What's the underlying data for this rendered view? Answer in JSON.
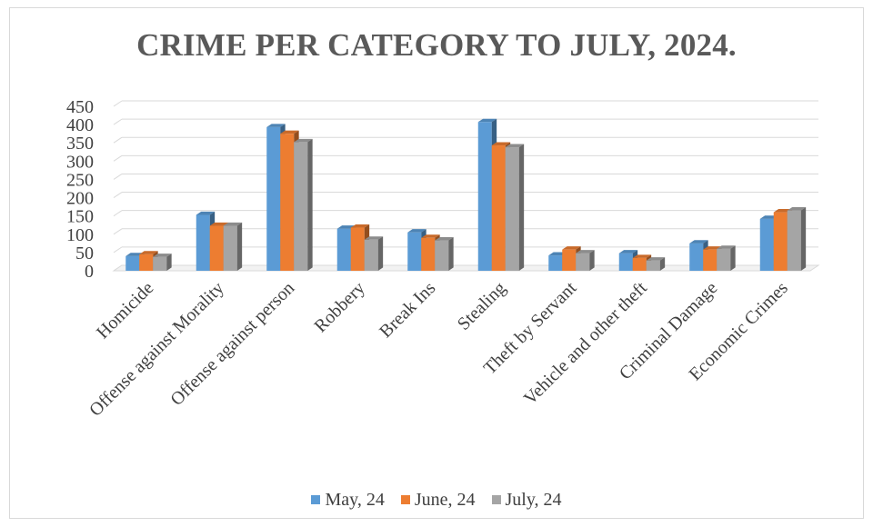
{
  "chart_data": {
    "type": "bar",
    "title": "CRIME PER CATEGORY TO JULY, 2024.",
    "categories": [
      "Homicide",
      "Offense against Morality",
      "Offense against person",
      "Robbery",
      "Break Ins",
      "Stealing",
      "Theft by Servant",
      "Vehicle and other theft",
      "Criminal Damage",
      "Economic Crimes"
    ],
    "series": [
      {
        "name": "May, 24",
        "color": "#5b9bd5",
        "values": [
          40,
          153,
          393,
          115,
          105,
          407,
          42,
          48,
          75,
          142
        ]
      },
      {
        "name": "June, 24",
        "color": "#ed7d31",
        "values": [
          45,
          123,
          375,
          118,
          90,
          343,
          58,
          35,
          58,
          160
        ]
      },
      {
        "name": "July, 24",
        "color": "#a5a5a5",
        "values": [
          38,
          123,
          352,
          85,
          83,
          338,
          48,
          28,
          60,
          165
        ]
      }
    ],
    "yticks": [
      "0",
      "50",
      "100",
      "150",
      "200",
      "250",
      "300",
      "350",
      "400",
      "450"
    ],
    "ylim": [
      0,
      450
    ],
    "grid": true,
    "legend_position": "bottom"
  }
}
